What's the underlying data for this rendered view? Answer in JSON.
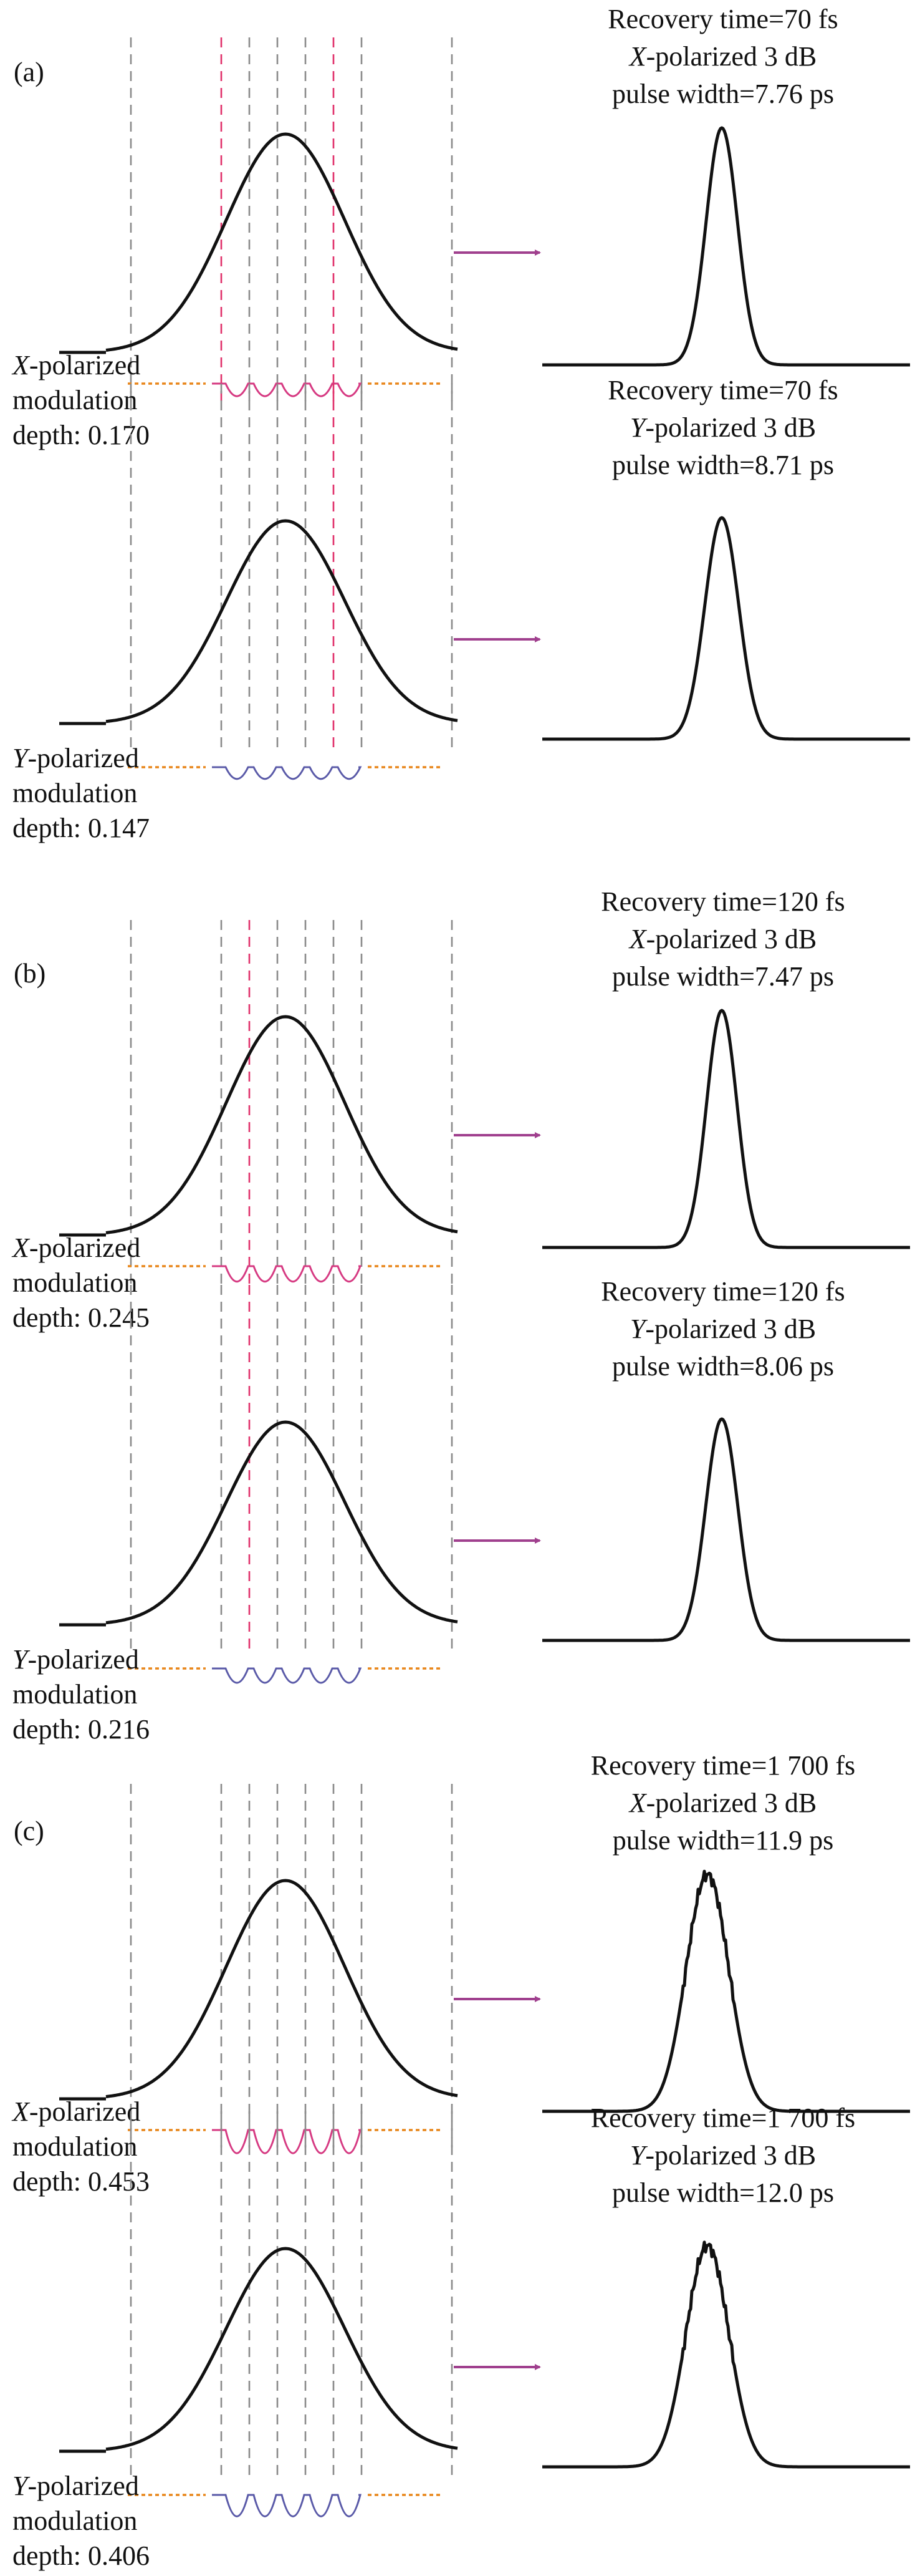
{
  "panels": [
    {
      "label": "(a)",
      "rows": [
        {
          "pol_letter": "X",
          "pol_suffix": "-polarized",
          "line2": "modulation",
          "line3": "depth: 0.170",
          "title1": "Recovery time=70 fs",
          "title2_letter": "X",
          "title2_suffix": "-polarized 3 dB",
          "title3": "pulse width=7.76 ps",
          "dip_color": "#d63a82",
          "side_color": "#e8861a",
          "dip_depth": 0.17,
          "pulse_width_ps": 7.76,
          "jagged": false
        },
        {
          "pol_letter": "Y",
          "pol_suffix": "-polarized",
          "line2": "modulation",
          "line3": "depth: 0.147",
          "title1": "Recovery time=70 fs",
          "title2_letter": "Y",
          "title2_suffix": "-polarized 3 dB",
          "title3": "pulse width=8.71 ps",
          "dip_color": "#5a5aa8",
          "side_color": "#e8861a",
          "dip_depth": 0.147,
          "pulse_width_ps": 8.71,
          "jagged": false
        }
      ]
    },
    {
      "label": "(b)",
      "rows": [
        {
          "pol_letter": "X",
          "pol_suffix": "-polarized",
          "line2": "modulation",
          "line3": "depth: 0.245",
          "title1": "Recovery time=120 fs",
          "title2_letter": "X",
          "title2_suffix": "-polarized 3 dB",
          "title3": "pulse width=7.47 ps",
          "dip_color": "#d63a82",
          "side_color": "#e8861a",
          "dip_depth": 0.245,
          "pulse_width_ps": 7.47,
          "jagged": false
        },
        {
          "pol_letter": "Y",
          "pol_suffix": "-polarized",
          "line2": "modulation",
          "line3": "depth: 0.216",
          "title1": "Recovery time=120 fs",
          "title2_letter": "Y",
          "title2_suffix": "-polarized 3 dB",
          "title3": "pulse width=8.06 ps",
          "dip_color": "#5a5aa8",
          "side_color": "#e8861a",
          "dip_depth": 0.216,
          "pulse_width_ps": 8.06,
          "jagged": false
        }
      ]
    },
    {
      "label": "(c)",
      "rows": [
        {
          "pol_letter": "X",
          "pol_suffix": "-polarized",
          "line2": "modulation",
          "line3": "depth: 0.453",
          "title1": "Recovery time=1 700 fs",
          "title2_letter": "X",
          "title2_suffix": "-polarized 3 dB",
          "title3": "pulse width=11.9 ps",
          "dip_color": "#d63a82",
          "side_color": "#e8861a",
          "dip_depth": 0.453,
          "pulse_width_ps": 11.9,
          "jagged": true
        },
        {
          "pol_letter": "Y",
          "pol_suffix": "-polarized",
          "line2": "modulation",
          "line3": "depth: 0.406",
          "title1": "Recovery time=1 700 fs",
          "title2_letter": "Y",
          "title2_suffix": "-polarized 3 dB",
          "title3": "pulse width=12.0 ps",
          "dip_color": "#5a5aa8",
          "side_color": "#e8861a",
          "dip_depth": 0.406,
          "pulse_width_ps": 12.0,
          "jagged": true
        }
      ]
    }
  ],
  "colors": {
    "arrow": "#a0408e",
    "grid": "#8a8a8a",
    "grid_highlight": "#e0306a",
    "curve": "#111111"
  }
}
